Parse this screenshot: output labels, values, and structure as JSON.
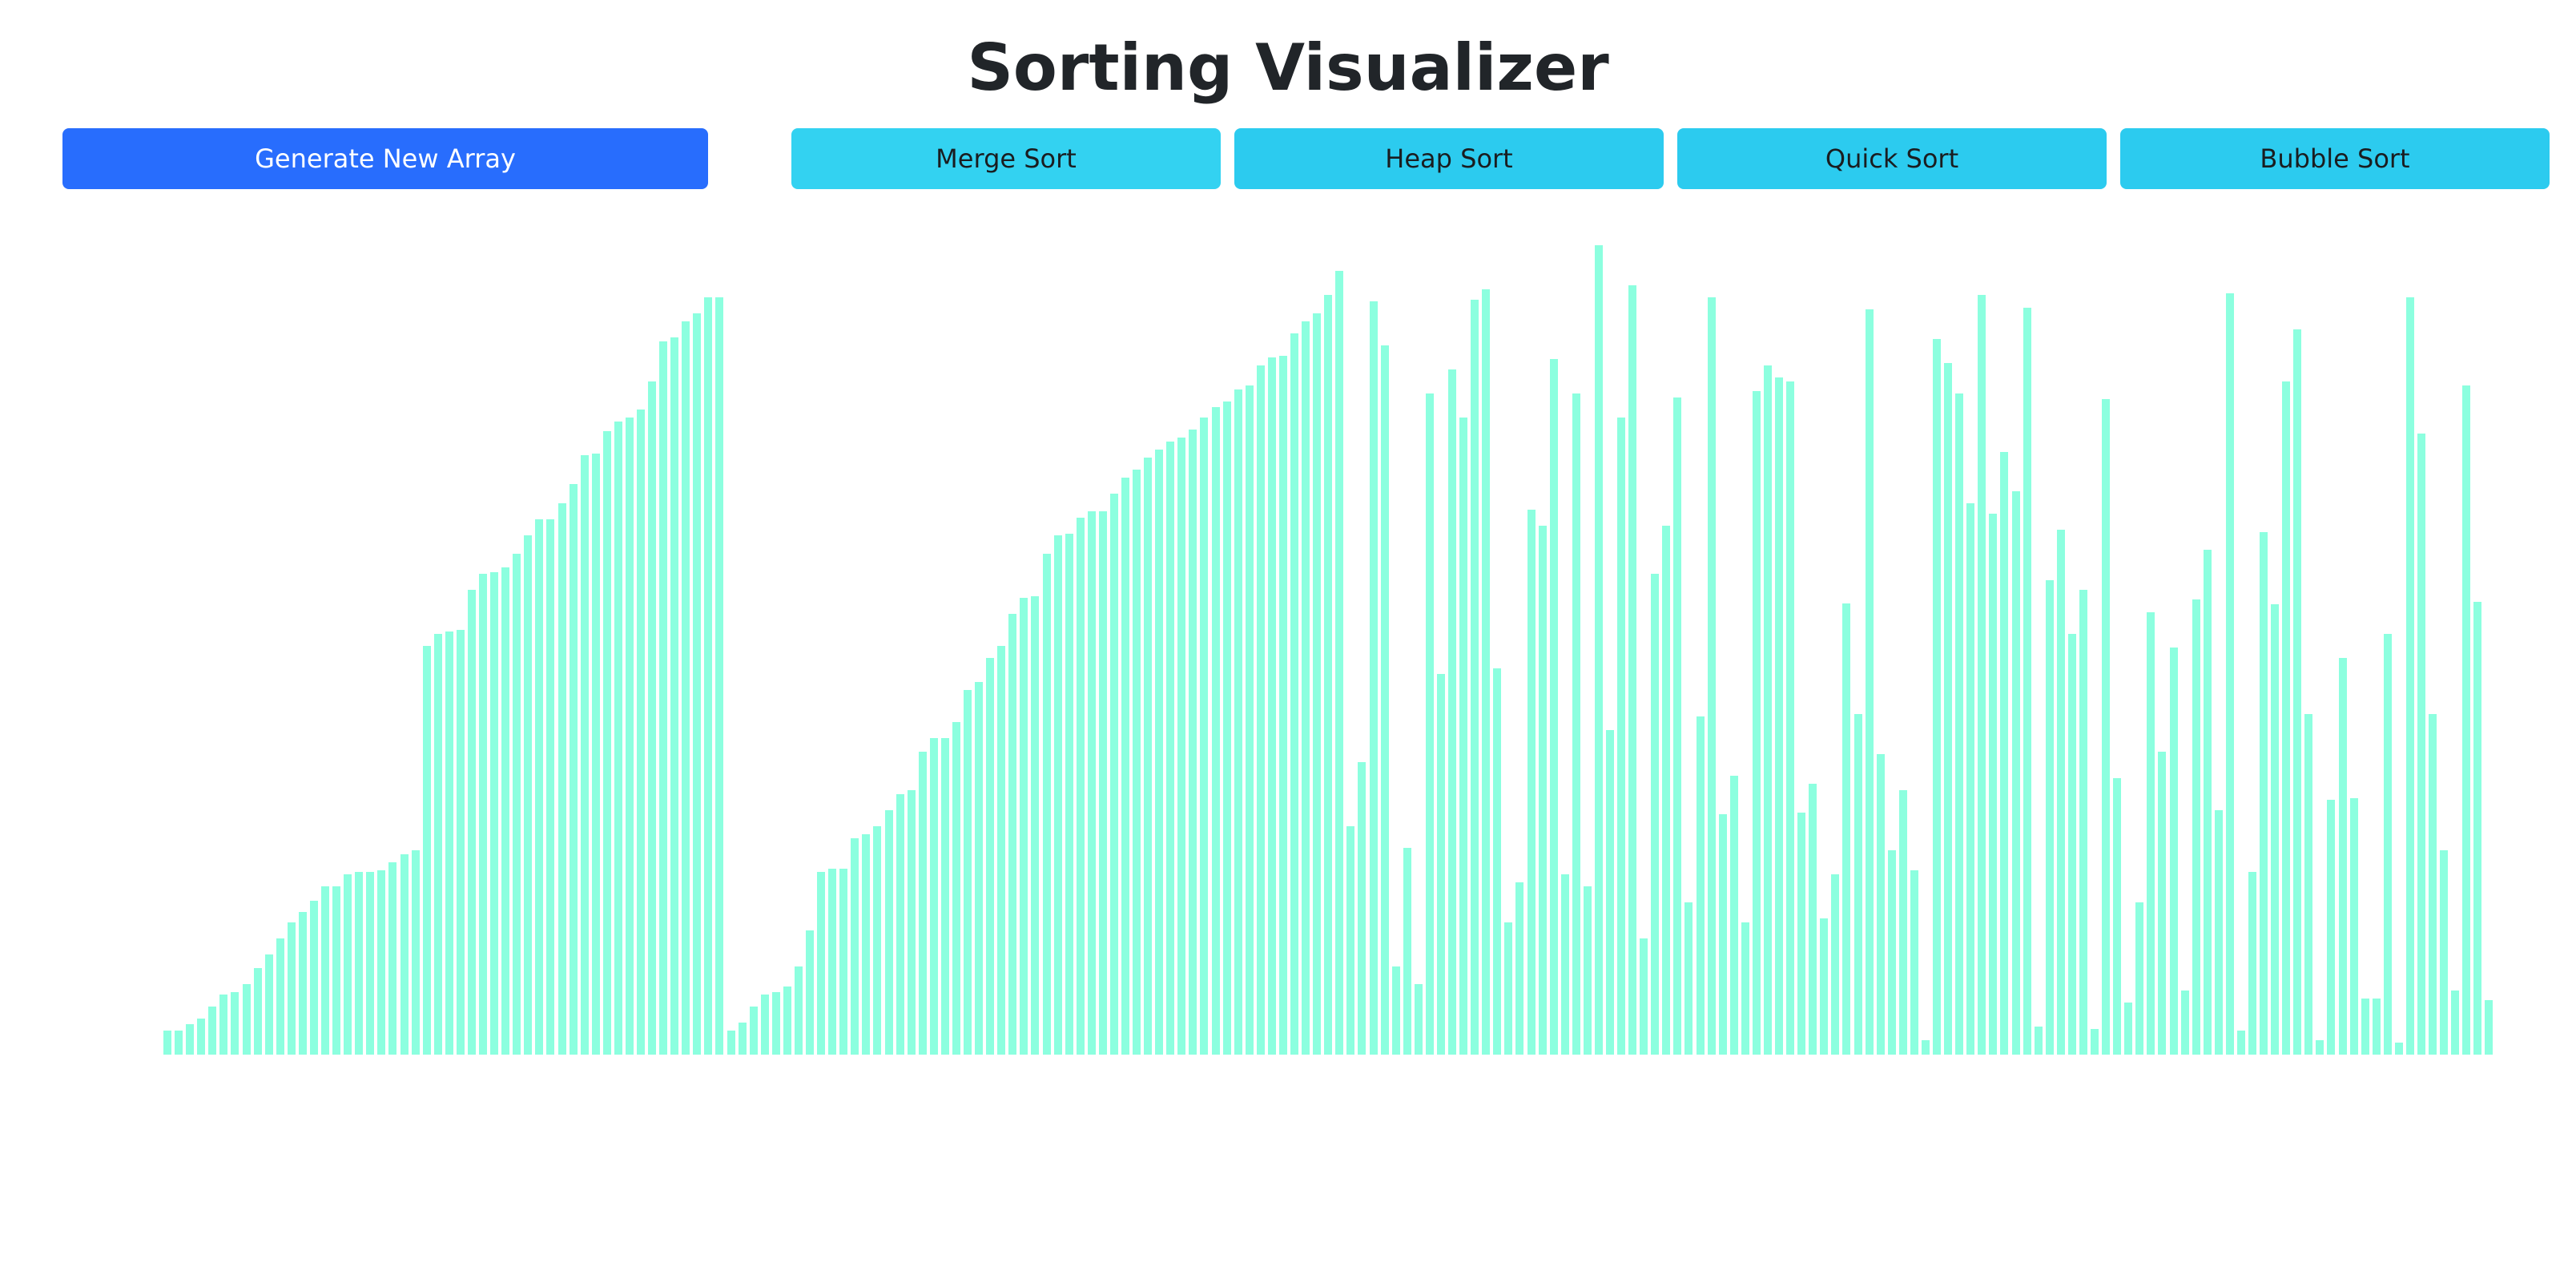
{
  "header": {
    "title": "Sorting Visualizer"
  },
  "toolbar": {
    "generate_label": "Generate New Array",
    "merge_label": "Merge Sort",
    "heap_label": "Heap Sort",
    "quick_label": "Quick Sort",
    "bubble_label": "Bubble Sort"
  },
  "colors": {
    "bar": "#80ffdb",
    "primary_button": "#286dfd",
    "info_button": "#2ccbef",
    "title_text": "#212529"
  },
  "chart_data": {
    "type": "bar",
    "values": [
      30,
      30,
      38,
      45,
      60,
      75,
      78,
      88,
      108,
      125,
      145,
      165,
      178,
      192,
      210,
      210,
      225,
      228,
      228,
      230,
      240,
      250,
      255,
      510,
      525,
      528,
      530,
      580,
      600,
      602,
      608,
      625,
      648,
      668,
      668,
      688,
      712,
      748,
      750,
      778,
      790,
      795,
      805,
      840,
      890,
      895,
      915,
      925,
      945,
      945,
      30,
      40,
      60,
      75,
      78,
      85,
      110,
      155,
      228,
      232,
      232,
      270,
      275,
      285,
      305,
      325,
      330,
      378,
      395,
      395,
      415,
      455,
      465,
      495,
      510,
      550,
      570,
      572,
      625,
      648,
      650,
      670,
      678,
      678,
      700,
      720,
      730,
      745,
      755,
      765,
      770,
      780,
      795,
      808,
      815,
      830,
      835,
      860,
      870,
      872,
      900,
      915,
      925,
      948,
      978,
      285,
      365,
      940,
      885,
      110,
      258,
      88,
      825,
      475,
      855,
      795,
      942,
      955,
      482,
      165,
      215,
      680,
      660,
      868,
      225,
      825,
      210,
      1010,
      405,
      795,
      960,
      145,
      600,
      660,
      820,
      190,
      422,
      945,
      300,
      348,
      165,
      828,
      860,
      845,
      840,
      302,
      338,
      170,
      225,
      563,
      425,
      930,
      375,
      255,
      330,
      230,
      18,
      893,
      863,
      825,
      688,
      948,
      675,
      752,
      703,
      932,
      35,
      592,
      655,
      525,
      580,
      32,
      818,
      345,
      65,
      190,
      552,
      378,
      508,
      80,
      568,
      630,
      305,
      950,
      30,
      228,
      652,
      562,
      840,
      905,
      425,
      18,
      318,
      495,
      320,
      70,
      70,
      525,
      15,
      945,
      775,
      425,
      255,
      80,
      835,
      565,
      68
    ]
  }
}
